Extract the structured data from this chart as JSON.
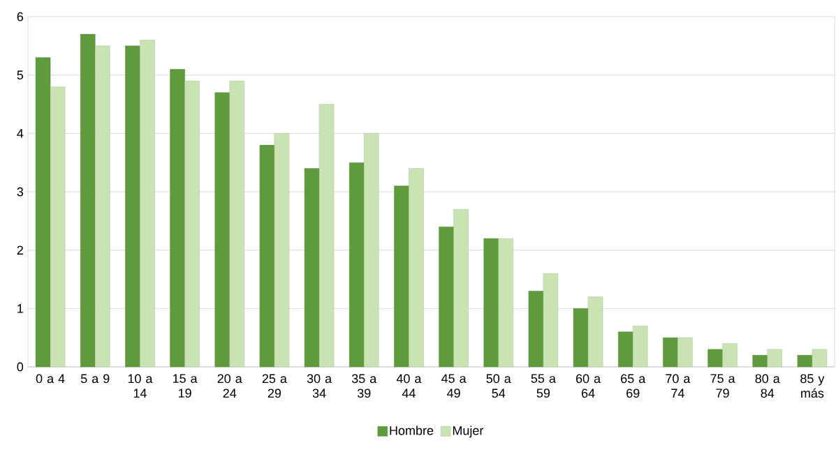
{
  "chart_data": {
    "type": "bar",
    "categories": [
      "0 a 4",
      "5 a 9",
      "10 a 14",
      "15 a 19",
      "20 a 24",
      "25 a 29",
      "30 a 34",
      "35 a 39",
      "40 a 44",
      "45 a 49",
      "50 a 54",
      "55 a 59",
      "60 a 64",
      "65 a 69",
      "70 a 74",
      "75 a 79",
      "80 a 84",
      "85 y más"
    ],
    "series": [
      {
        "name": "Hombre",
        "color": "#5f9b3c",
        "values": [
          5.3,
          5.7,
          5.5,
          5.1,
          4.7,
          3.8,
          3.4,
          3.5,
          3.1,
          2.4,
          2.2,
          1.3,
          1.0,
          0.6,
          0.5,
          0.3,
          0.2,
          0.2
        ]
      },
      {
        "name": "Mujer",
        "color": "#c9e3b3",
        "values": [
          4.8,
          5.5,
          5.6,
          4.9,
          4.9,
          4.0,
          4.5,
          4.0,
          3.4,
          2.7,
          2.2,
          1.6,
          1.2,
          0.7,
          0.5,
          0.4,
          0.3,
          0.3
        ]
      }
    ],
    "ylim": [
      0,
      6
    ],
    "yticks": [
      0,
      1,
      2,
      3,
      4,
      5,
      6
    ],
    "grid": "y",
    "legend": "bottom"
  }
}
